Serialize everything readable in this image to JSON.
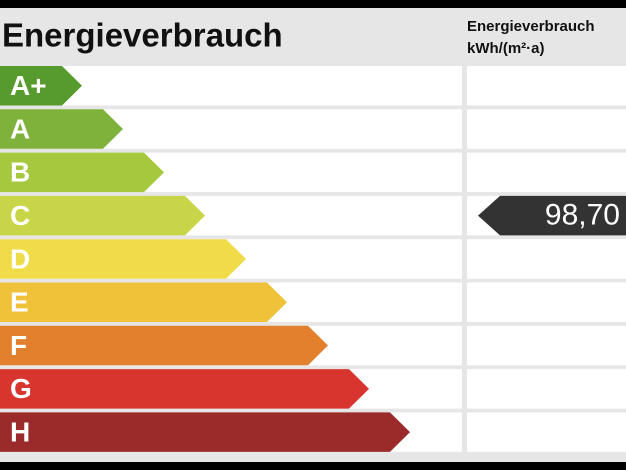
{
  "header": {
    "title": "Energieverbrauch",
    "unit_title": "Energieverbrauch",
    "unit": "kWh/(m²·a)"
  },
  "classes": [
    {
      "label": "A+",
      "color": "#579a2d"
    },
    {
      "label": "A",
      "color": "#7eb23a"
    },
    {
      "label": "B",
      "color": "#a6c83f"
    },
    {
      "label": "C",
      "color": "#c9d548",
      "value": "98,70"
    },
    {
      "label": "D",
      "color": "#efdc48"
    },
    {
      "label": "E",
      "color": "#f0c23a"
    },
    {
      "label": "F",
      "color": "#e2802e"
    },
    {
      "label": "G",
      "color": "#d8352f"
    },
    {
      "label": "H",
      "color": "#9b2a2a"
    }
  ]
}
